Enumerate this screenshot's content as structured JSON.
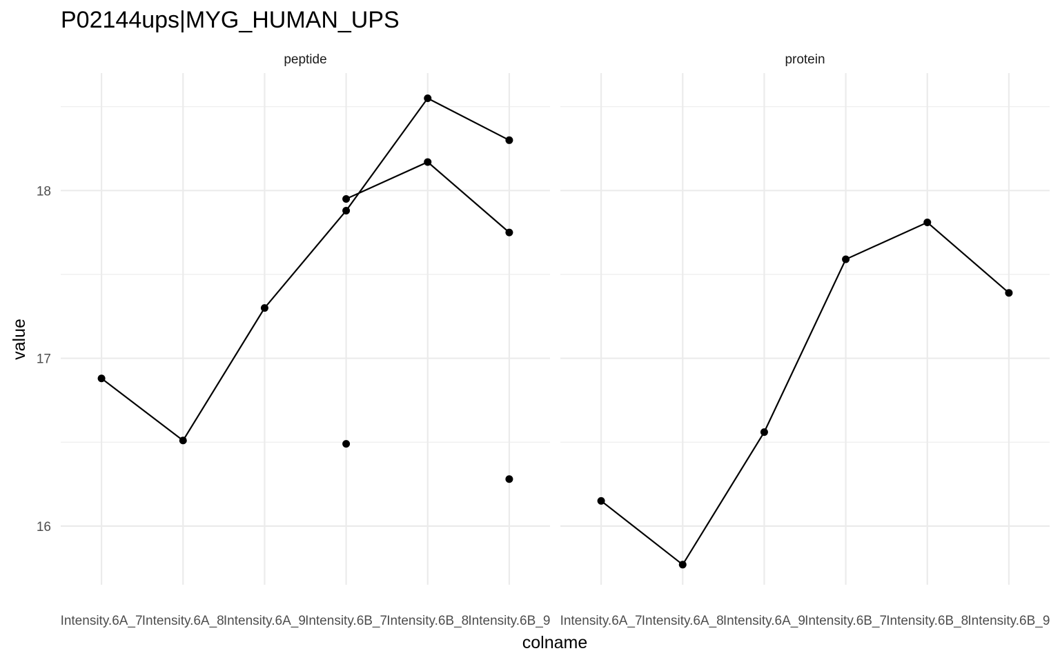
{
  "chart_data": {
    "type": "line",
    "title": "P02144ups|MYG_HUMAN_UPS",
    "xlabel": "colname",
    "ylabel": "value",
    "categories": [
      "Intensity.6A_7",
      "Intensity.6A_8",
      "Intensity.6A_9",
      "Intensity.6B_7",
      "Intensity.6B_8",
      "Intensity.6B_9"
    ],
    "ylim": [
      15.65,
      18.7
    ],
    "yticks": [
      16,
      17,
      18
    ],
    "grid": true,
    "panels": [
      {
        "name": "peptide",
        "series": [
          {
            "values": [
              16.88,
              16.51,
              17.3,
              17.88,
              18.55,
              18.3
            ]
          },
          {
            "values": [
              null,
              null,
              null,
              17.95,
              18.17,
              17.75
            ]
          },
          {
            "values": [
              null,
              null,
              null,
              16.49,
              null,
              16.28
            ]
          }
        ]
      },
      {
        "name": "protein",
        "series": [
          {
            "values": [
              16.15,
              15.77,
              16.56,
              17.59,
              17.81,
              17.39
            ]
          }
        ]
      }
    ]
  }
}
